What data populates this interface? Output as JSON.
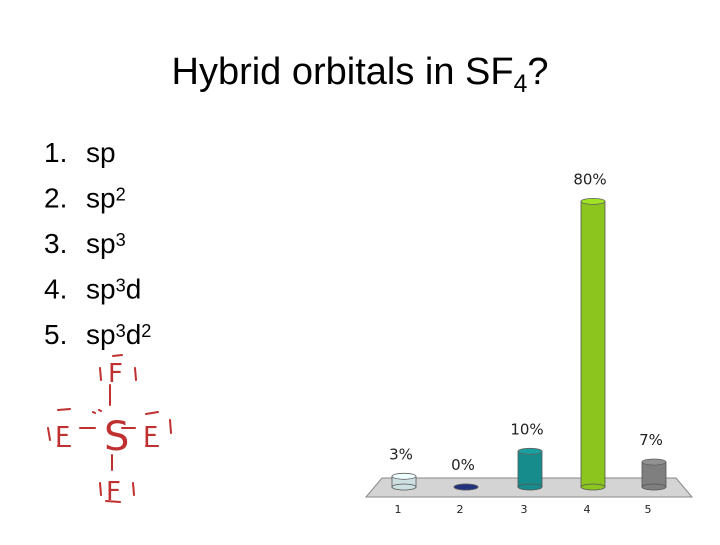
{
  "slide": {
    "title": [
      {
        "t": "Hybrid orbitals in SF"
      },
      {
        "sub": "4"
      },
      {
        "t": "?"
      }
    ],
    "list": [
      {
        "marker": "1.",
        "parts": [
          {
            "t": "sp"
          }
        ]
      },
      {
        "marker": "2.",
        "parts": [
          {
            "t": "sp"
          },
          {
            "sup": "2"
          }
        ]
      },
      {
        "marker": "3.",
        "parts": [
          {
            "t": "sp"
          },
          {
            "sup": "3"
          }
        ]
      },
      {
        "marker": "4.",
        "parts": [
          {
            "t": "sp"
          },
          {
            "sup": "3"
          },
          {
            "t": "d"
          }
        ]
      },
      {
        "marker": "5.",
        "parts": [
          {
            "t": "sp"
          },
          {
            "sup": "3"
          },
          {
            "t": "d"
          },
          {
            "sup": "2"
          }
        ]
      }
    ],
    "lewis": {
      "center": "S",
      "atoms": [
        "F",
        "F",
        "F",
        "F"
      ]
    }
  },
  "chart_data": {
    "type": "bar",
    "categories": [
      "1",
      "2",
      "3",
      "4",
      "5"
    ],
    "values": [
      3,
      0,
      10,
      80,
      7
    ],
    "value_labels": [
      "3%",
      "0%",
      "10%",
      "80%",
      "7%"
    ],
    "colors": [
      "#cfe0e3",
      "#1f2b6e",
      "#168c8c",
      "#8cc51e",
      "#7f7f7f"
    ]
  }
}
